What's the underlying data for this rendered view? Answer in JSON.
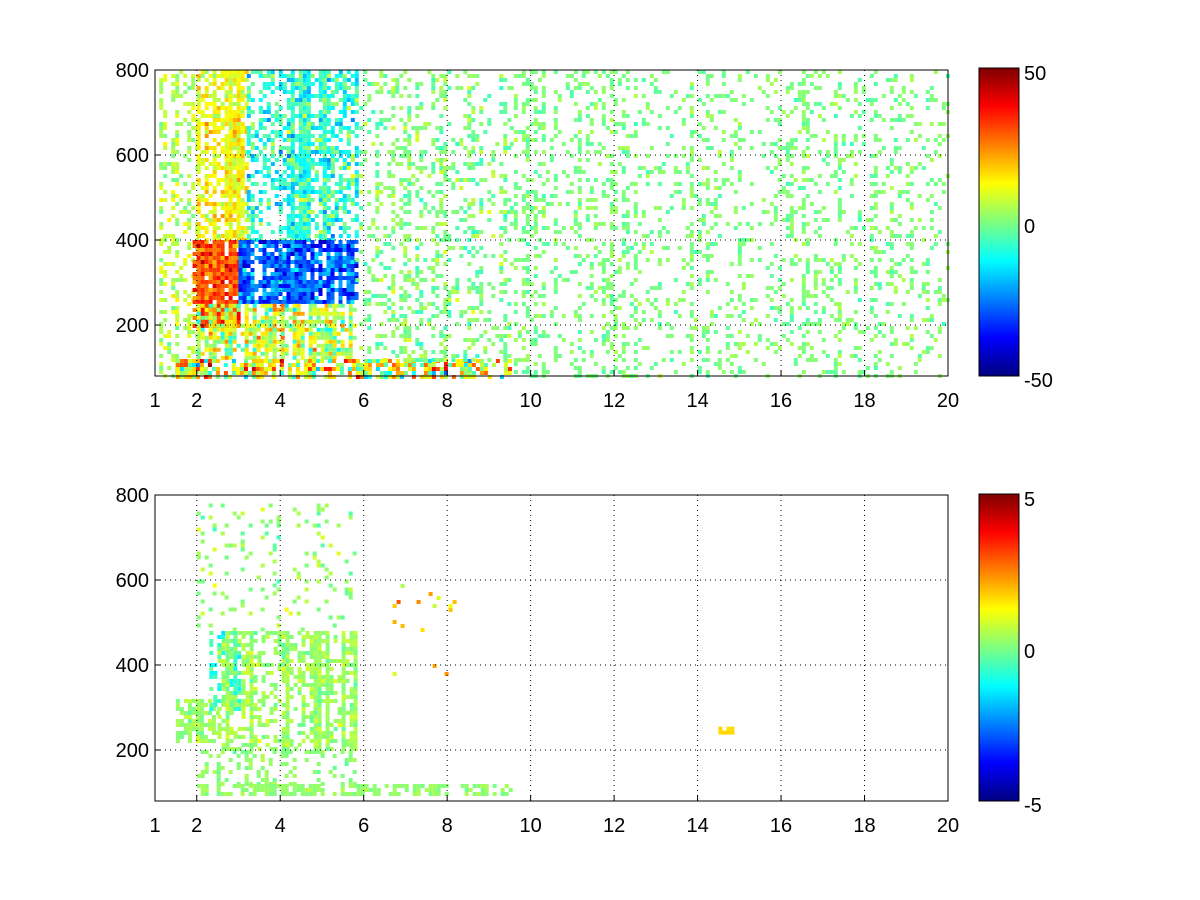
{
  "chart_data": [
    {
      "type": "heatmap",
      "title": "",
      "xlabel": "",
      "ylabel": "",
      "xlim": [
        1,
        20
      ],
      "ylim": [
        80,
        800
      ],
      "x_ticks": [
        "1",
        "2",
        "4",
        "6",
        "8",
        "10",
        "12",
        "14",
        "16",
        "18",
        "20"
      ],
      "y_ticks": [
        "200",
        "400",
        "600",
        "800"
      ],
      "grid": true,
      "colormap": "jet",
      "colorbar": {
        "min": -50,
        "max": 50,
        "ticks": [
          "50",
          "0",
          "-50"
        ]
      },
      "regions": [
        {
          "x": [
            1.1,
            2.0
          ],
          "y": [
            80,
            800
          ],
          "density": 0.25,
          "mean": 5,
          "spread": 8
        },
        {
          "x": [
            2.0,
            3.2
          ],
          "y": [
            400,
            800
          ],
          "density": 0.75,
          "mean": 12,
          "spread": 10
        },
        {
          "x": [
            3.2,
            5.8
          ],
          "y": [
            400,
            800
          ],
          "density": 0.6,
          "mean": -8,
          "spread": 14
        },
        {
          "x": [
            1.9,
            3.0
          ],
          "y": [
            200,
            400
          ],
          "density": 0.95,
          "mean": 30,
          "spread": 12
        },
        {
          "x": [
            3.0,
            5.8
          ],
          "y": [
            250,
            400
          ],
          "density": 0.9,
          "mean": -28,
          "spread": 14
        },
        {
          "x": [
            2.0,
            5.8
          ],
          "y": [
            120,
            250
          ],
          "density": 0.75,
          "mean": 6,
          "spread": 18
        },
        {
          "x": [
            1.5,
            9.5
          ],
          "y": [
            80,
            120
          ],
          "density": 0.7,
          "mean": 10,
          "spread": 28
        },
        {
          "x": [
            5.8,
            9.5
          ],
          "y": [
            120,
            800
          ],
          "density": 0.22,
          "mean": 0,
          "spread": 8
        },
        {
          "x": [
            9.5,
            20
          ],
          "y": [
            80,
            800
          ],
          "density": 0.22,
          "mean": 0,
          "spread": 5
        }
      ]
    },
    {
      "type": "heatmap",
      "title": "",
      "xlabel": "",
      "ylabel": "",
      "xlim": [
        1,
        20
      ],
      "ylim": [
        80,
        800
      ],
      "x_ticks": [
        "1",
        "2",
        "4",
        "6",
        "8",
        "10",
        "12",
        "14",
        "16",
        "18",
        "20"
      ],
      "y_ticks": [
        "200",
        "400",
        "600",
        "800"
      ],
      "grid": true,
      "colormap": "jet",
      "colorbar": {
        "min": -5,
        "max": 5,
        "ticks": [
          "5",
          "0",
          "-5"
        ]
      },
      "regions": [
        {
          "x": [
            1.5,
            2.5
          ],
          "y": [
            220,
            320
          ],
          "density": 0.65,
          "mean": 0.3,
          "spread": 0.5
        },
        {
          "x": [
            2.3,
            3.0
          ],
          "y": [
            300,
            480
          ],
          "density": 0.55,
          "mean": -0.8,
          "spread": 0.8
        },
        {
          "x": [
            2.5,
            5.8
          ],
          "y": [
            200,
            480
          ],
          "density": 0.6,
          "mean": 0.3,
          "spread": 0.6
        },
        {
          "x": [
            2.0,
            5.8
          ],
          "y": [
            480,
            780
          ],
          "density": 0.12,
          "mean": 0.2,
          "spread": 0.8
        },
        {
          "x": [
            2.0,
            5.8
          ],
          "y": [
            120,
            200
          ],
          "density": 0.3,
          "mean": 0.1,
          "spread": 0.4
        },
        {
          "x": [
            2.0,
            9.5
          ],
          "y": [
            95,
            120
          ],
          "density": 0.55,
          "mean": 0.2,
          "spread": 0.3
        },
        {
          "x": [
            6.5,
            8.2
          ],
          "y": [
            380,
            600
          ],
          "density": 0.03,
          "mean": 1.5,
          "spread": 1.2
        },
        {
          "x": [
            14.5,
            14.8
          ],
          "y": [
            245,
            255
          ],
          "density": 1.0,
          "mean": 1.6,
          "spread": 0.1
        }
      ]
    }
  ]
}
